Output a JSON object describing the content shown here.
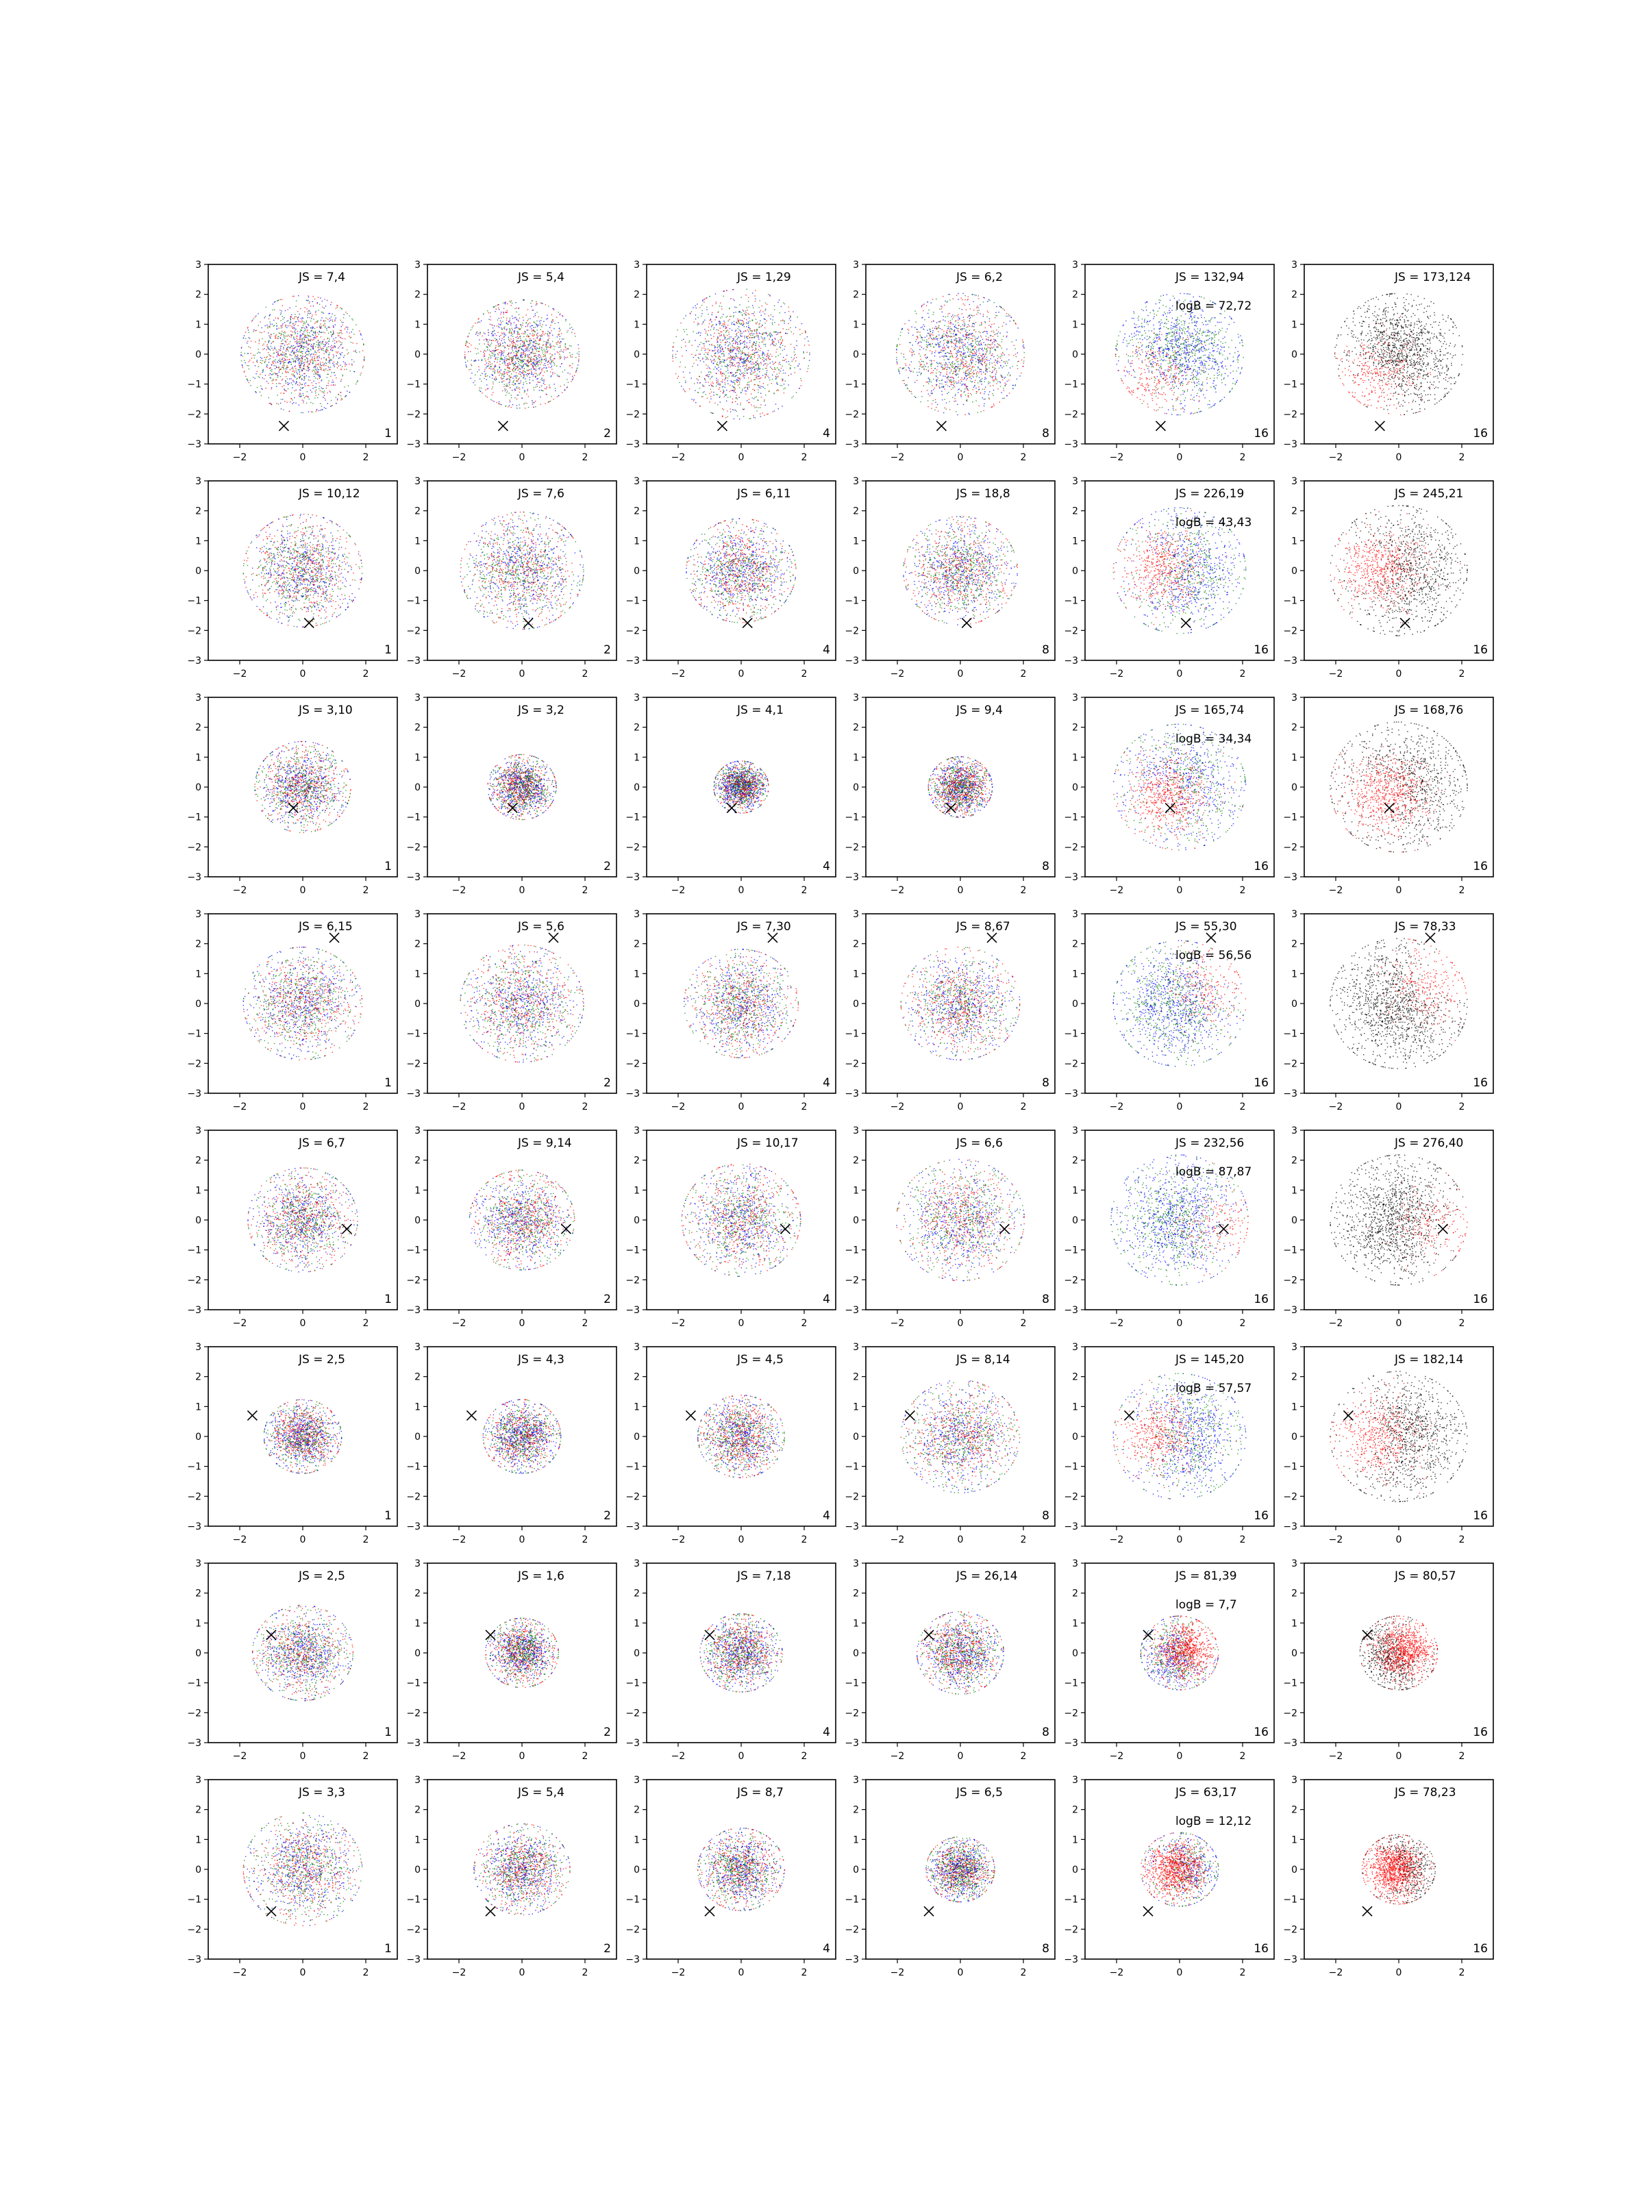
{
  "chart_data": {
    "type": "scatter",
    "layout": {
      "rows": 8,
      "cols": 6
    },
    "xlim": [
      -3,
      3
    ],
    "ylim": [
      -3,
      3
    ],
    "xticks": [
      -2,
      0,
      2
    ],
    "yticks": [
      -3,
      -2,
      -1,
      0,
      1,
      2,
      3
    ],
    "grid": false,
    "series_colors": {
      "red": "#ff0000",
      "green": "#008000",
      "blue": "#0000ff",
      "black": "#000000"
    },
    "marker": "x",
    "columns": [
      {
        "corner_label": "1",
        "palette": "mixed"
      },
      {
        "corner_label": "2",
        "palette": "mixed"
      },
      {
        "corner_label": "4",
        "palette": "mixed"
      },
      {
        "corner_label": "8",
        "palette": "mixed"
      },
      {
        "corner_label": "16",
        "palette": "mixed"
      },
      {
        "corner_label": "16",
        "palette": "red-black"
      }
    ],
    "rows": [
      {
        "marker_xy": [
          -0.6,
          -2.4
        ],
        "spread": [
          1.35,
          1.25,
          1.5,
          1.4,
          1.4,
          1.4
        ],
        "js": [
          "JS = 7,4",
          "JS = 5,4",
          "JS = 1,29",
          "JS = 6,2",
          "JS = 132,94",
          "JS = 173,124"
        ],
        "logB": "logB = 72,72",
        "red_center": [
          -1.3,
          -1.3
        ]
      },
      {
        "marker_xy": [
          0.2,
          -1.75
        ],
        "spread": [
          1.3,
          1.35,
          1.2,
          1.25,
          1.45,
          1.5
        ],
        "js": [
          "JS = 10,12",
          "JS = 7,6",
          "JS = 6,11",
          "JS = 18,8",
          "JS = 226,19",
          "JS = 245,21"
        ],
        "logB": "logB = 43,43",
        "red_center": [
          -1.0,
          0.1
        ]
      },
      {
        "marker_xy": [
          -0.3,
          -0.7
        ],
        "spread": [
          1.05,
          0.75,
          0.6,
          0.7,
          1.45,
          1.5
        ],
        "js": [
          "JS = 3,10",
          "JS = 3,2",
          "JS = 4,1",
          "JS = 9,4",
          "JS = 165,74",
          "JS = 168,76"
        ],
        "logB": "logB = 34,34",
        "red_center": [
          -0.6,
          -0.5
        ]
      },
      {
        "marker_xy": [
          1.0,
          2.2
        ],
        "spread": [
          1.3,
          1.35,
          1.25,
          1.3,
          1.45,
          1.5
        ],
        "js": [
          "JS = 6,15",
          "JS = 5,6",
          "JS = 7,30",
          "JS = 8,67",
          "JS = 55,30",
          "JS = 78,33"
        ],
        "logB": "logB = 56,56",
        "red_center": [
          1.5,
          1.0
        ]
      },
      {
        "marker_xy": [
          1.4,
          -0.3
        ],
        "spread": [
          1.2,
          1.15,
          1.3,
          1.4,
          1.5,
          1.5
        ],
        "js": [
          "JS = 6,7",
          "JS = 9,14",
          "JS = 10,17",
          "JS = 6,6",
          "JS = 232,56",
          "JS = 276,40"
        ],
        "logB": "logB = 87,87",
        "red_center": [
          2.0,
          -0.5
        ]
      },
      {
        "marker_xy": [
          -1.6,
          0.7
        ],
        "spread": [
          0.85,
          0.85,
          0.95,
          1.3,
          1.45,
          1.5
        ],
        "js": [
          "JS = 2,5",
          "JS = 4,3",
          "JS = 4,5",
          "JS = 8,14",
          "JS = 145,20",
          "JS = 182,14"
        ],
        "logB": "logB = 57,57",
        "red_center": [
          -1.2,
          0.0
        ]
      },
      {
        "marker_xy": [
          -1.0,
          0.6
        ],
        "spread": [
          1.1,
          0.8,
          0.9,
          0.95,
          0.85,
          0.85
        ],
        "js": [
          "JS = 2,5",
          "JS = 1,6",
          "JS = 7,18",
          "JS = 26,14",
          "JS = 81,39",
          "JS = 80,57"
        ],
        "logB": "logB = 7,7",
        "red_center": [
          0.6,
          0.3
        ]
      },
      {
        "marker_xy": [
          -1.0,
          -1.4
        ],
        "spread": [
          1.3,
          1.05,
          0.95,
          0.75,
          0.85,
          0.8
        ],
        "js": [
          "JS = 3,3",
          "JS = 5,4",
          "JS = 8,7",
          "JS = 6,5",
          "JS = 63,17",
          "JS = 78,23"
        ],
        "logB": "logB = 12,12",
        "red_center": [
          -0.5,
          -0.1
        ]
      }
    ]
  }
}
